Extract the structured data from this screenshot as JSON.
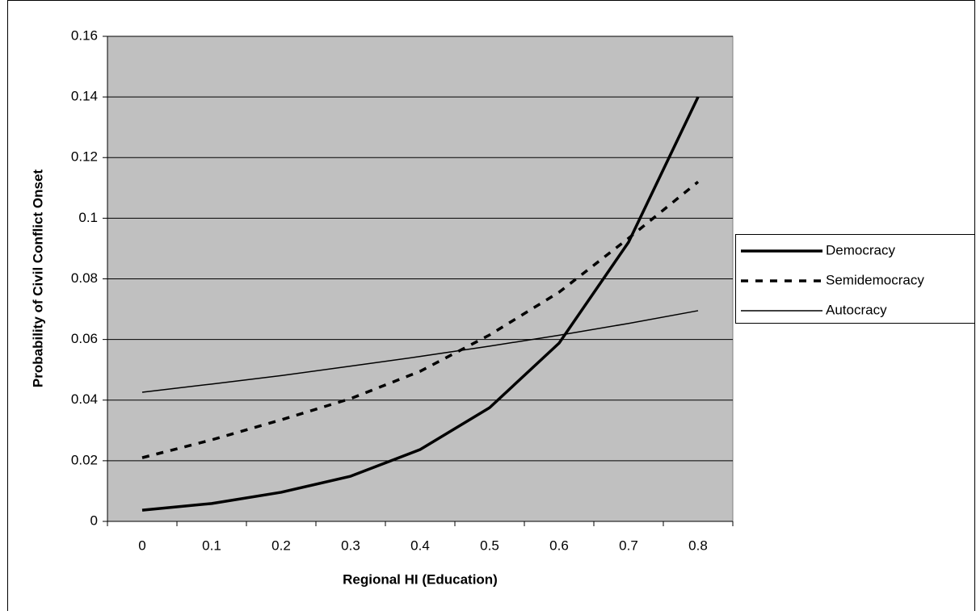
{
  "chart_data": {
    "type": "line",
    "x_label": "Regional HI (Education)",
    "y_label": "Probability of Civil Conflict Onset",
    "categories": [
      "0",
      "0.1",
      "0.2",
      "0.3",
      "0.4",
      "0.5",
      "0.6",
      "0.7",
      "0.8"
    ],
    "series": [
      {
        "name": "Democracy",
        "color": "#000000",
        "values": [
          0.0037,
          0.0059,
          0.0096,
          0.0149,
          0.0237,
          0.0375,
          0.0588,
          0.0921,
          0.14
        ]
      },
      {
        "name": "Semidemocracy",
        "color": "#000000",
        "values": [
          0.021,
          0.0269,
          0.0335,
          0.0405,
          0.0495,
          0.0615,
          0.0756,
          0.0934,
          0.112
        ]
      },
      {
        "name": "Autocracy",
        "color": "#000000",
        "values": [
          0.0426,
          0.0453,
          0.0481,
          0.0512,
          0.0544,
          0.0578,
          0.0614,
          0.0653,
          0.0695
        ]
      }
    ],
    "ylim": [
      0,
      0.16
    ],
    "yticks": [
      0,
      0.02,
      0.04,
      0.06,
      0.08,
      0.1,
      0.12,
      0.14,
      0.16
    ],
    "grid": true,
    "plot_background": "#c0c0c0",
    "legend": "right"
  }
}
